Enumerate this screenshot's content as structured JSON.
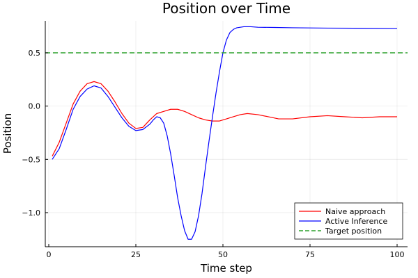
{
  "chart_data": {
    "type": "line",
    "title": "Position over Time",
    "xlabel": "Time step",
    "ylabel": "Position",
    "xlim": [
      -1,
      103
    ],
    "ylim": [
      -1.32,
      0.8
    ],
    "x_ticks": [
      0,
      25,
      50,
      75,
      100
    ],
    "x_tick_labels": [
      "0",
      "25",
      "50",
      "75",
      "100"
    ],
    "y_ticks": [
      -1.0,
      -0.5,
      0.0,
      0.5
    ],
    "y_tick_labels": [
      "−1.0",
      "−0.5",
      "0.0",
      "0.5"
    ],
    "grid": true,
    "legend_position": "bottom-right",
    "series": [
      {
        "name": "Naive approach",
        "color": "#ff0000",
        "style": "solid",
        "x": [
          1,
          3,
          5,
          7,
          9,
          11,
          13,
          15,
          17,
          19,
          21,
          23,
          25,
          27,
          29,
          31,
          33,
          35,
          37,
          39,
          41,
          43,
          45,
          47,
          49,
          51,
          53,
          55,
          57,
          60,
          63,
          66,
          70,
          75,
          80,
          85,
          90,
          95,
          100
        ],
        "y": [
          -0.47,
          -0.34,
          -0.16,
          0.02,
          0.14,
          0.21,
          0.23,
          0.21,
          0.14,
          0.04,
          -0.07,
          -0.16,
          -0.21,
          -0.2,
          -0.13,
          -0.07,
          -0.05,
          -0.03,
          -0.03,
          -0.05,
          -0.08,
          -0.11,
          -0.13,
          -0.14,
          -0.14,
          -0.12,
          -0.1,
          -0.08,
          -0.07,
          -0.08,
          -0.1,
          -0.12,
          -0.12,
          -0.1,
          -0.09,
          -0.1,
          -0.11,
          -0.1,
          -0.1
        ]
      },
      {
        "name": "Active Inference",
        "color": "#0000ff",
        "style": "solid",
        "x": [
          1,
          3,
          5,
          7,
          9,
          11,
          13,
          15,
          17,
          19,
          21,
          23,
          25,
          27,
          29,
          30,
          31,
          32,
          33,
          34,
          35,
          36,
          37,
          38,
          39,
          40,
          41,
          42,
          43,
          44,
          45,
          46,
          47,
          48,
          49,
          50,
          51,
          52,
          53,
          54,
          55,
          56,
          58,
          60,
          65,
          70,
          80,
          90,
          100
        ],
        "y": [
          -0.5,
          -0.4,
          -0.22,
          -0.03,
          0.09,
          0.16,
          0.19,
          0.17,
          0.09,
          -0.01,
          -0.11,
          -0.19,
          -0.23,
          -0.22,
          -0.17,
          -0.13,
          -0.1,
          -0.11,
          -0.16,
          -0.28,
          -0.45,
          -0.65,
          -0.86,
          -1.03,
          -1.17,
          -1.25,
          -1.25,
          -1.18,
          -1.03,
          -0.82,
          -0.57,
          -0.33,
          -0.1,
          0.12,
          0.32,
          0.5,
          0.62,
          0.69,
          0.72,
          0.735,
          0.74,
          0.745,
          0.745,
          0.74,
          0.738,
          0.735,
          0.732,
          0.73,
          0.728
        ]
      },
      {
        "name": "Target position",
        "color": "#2ca02c",
        "style": "dashed",
        "x": [
          -1,
          103
        ],
        "y": [
          0.5,
          0.5
        ]
      }
    ]
  }
}
